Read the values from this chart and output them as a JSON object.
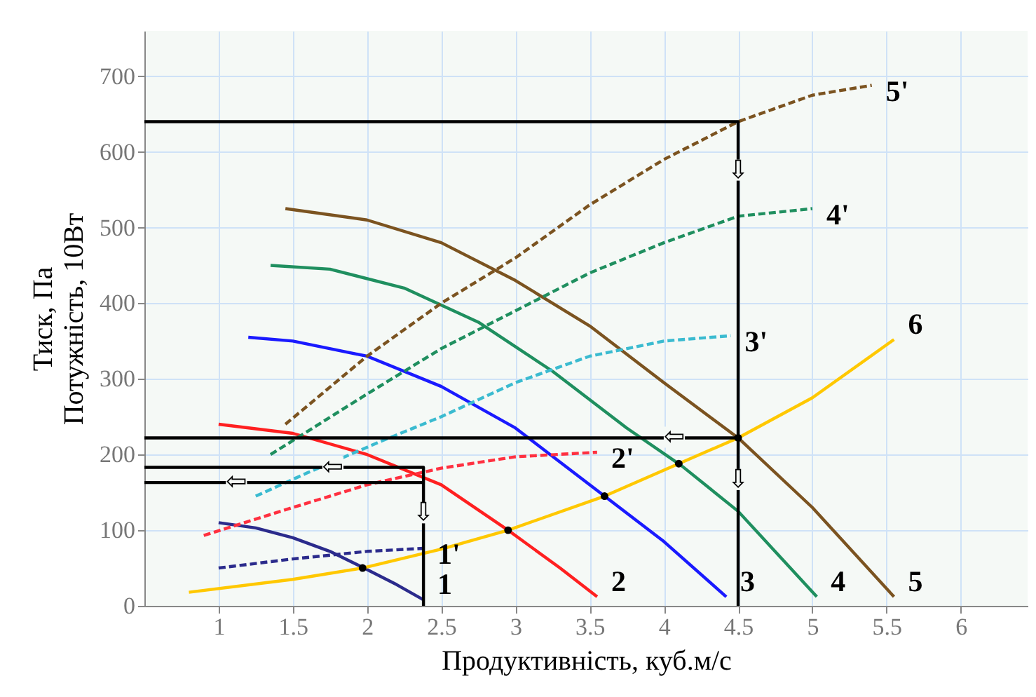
{
  "chart_data": {
    "type": "line",
    "xlabel": "Продуктивність, куб.м/с",
    "ylabel": "Тиск, Па\nПотужність, 10Вт",
    "xlim": [
      0.5,
      6.45
    ],
    "ylim": [
      0,
      760
    ],
    "xticks": [
      1,
      1.5,
      2,
      2.5,
      3,
      3.5,
      4,
      4.5,
      5,
      5.5,
      6
    ],
    "yticks": [
      0,
      100,
      200,
      300,
      400,
      500,
      600,
      700
    ],
    "grid": true,
    "series": [
      {
        "name": "1",
        "color": "#2b2b8c",
        "line_style": "solid",
        "x": [
          1,
          1.25,
          1.5,
          1.75,
          2,
          2.2,
          2.38
        ],
        "values": [
          110,
          103,
          90,
          72,
          48,
          28,
          8
        ]
      },
      {
        "name": "2",
        "color": "#ff2020",
        "line_style": "solid",
        "x": [
          1,
          1.5,
          2,
          2.5,
          2.95,
          3.3,
          3.55
        ],
        "values": [
          240,
          228,
          200,
          160,
          100,
          50,
          12
        ]
      },
      {
        "name": "3",
        "color": "#1a1aff",
        "line_style": "solid",
        "x": [
          1.2,
          1.5,
          2,
          2.5,
          3,
          3.6,
          4,
          4.42
        ],
        "values": [
          355,
          350,
          330,
          290,
          235,
          145,
          85,
          12
        ]
      },
      {
        "name": "4",
        "color": "#1f8f5f",
        "line_style": "solid",
        "x": [
          1.35,
          1.75,
          2.25,
          2.75,
          3.25,
          3.75,
          4.12,
          4.5,
          5.03
        ],
        "values": [
          450,
          445,
          420,
          375,
          310,
          235,
          185,
          125,
          12
        ]
      },
      {
        "name": "5",
        "color": "#7b5320",
        "line_style": "solid",
        "x": [
          1.45,
          2,
          2.5,
          3,
          3.5,
          4,
          4.5,
          5,
          5.55
        ],
        "values": [
          525,
          510,
          480,
          430,
          370,
          295,
          222,
          130,
          12
        ]
      },
      {
        "name": "1'",
        "color": "#2b2b8c",
        "line_style": "dashed",
        "x": [
          1,
          1.5,
          2,
          2.38
        ],
        "values": [
          50,
          62,
          72,
          76
        ]
      },
      {
        "name": "2'",
        "color": "#ff3040",
        "line_style": "dashed",
        "x": [
          0.9,
          1.5,
          2,
          2.5,
          3,
          3.55
        ],
        "values": [
          93,
          130,
          160,
          182,
          197,
          203
        ]
      },
      {
        "name": "3'",
        "color": "#3bbbd0",
        "line_style": "dashed",
        "x": [
          1.25,
          1.6,
          2.1,
          2.5,
          3,
          3.5,
          4,
          4.45
        ],
        "values": [
          145,
          176,
          218,
          250,
          295,
          330,
          350,
          357
        ]
      },
      {
        "name": "4'",
        "color": "#1f8f5f",
        "line_style": "dashed",
        "x": [
          1.35,
          2,
          2.5,
          3,
          3.5,
          4,
          4.5,
          5
        ],
        "values": [
          200,
          280,
          340,
          390,
          440,
          480,
          515,
          525
        ]
      },
      {
        "name": "5'",
        "color": "#7b5320",
        "line_style": "dashed",
        "x": [
          1.45,
          2,
          2.5,
          3,
          3.5,
          4,
          4.5,
          5,
          5.4
        ],
        "values": [
          240,
          330,
          400,
          460,
          530,
          590,
          640,
          675,
          688
        ]
      },
      {
        "name": "6",
        "color": "#ffc800",
        "line_style": "solid",
        "x": [
          0.8,
          1.5,
          1.97,
          2.5,
          2.95,
          3.6,
          4.1,
          4.5,
          5,
          5.55
        ],
        "values": [
          18,
          35,
          50,
          75,
          100,
          145,
          188,
          222,
          275,
          352
        ]
      },
      {
        "color": "#000000",
        "line_style": "solid",
        "x": [
          0.5,
          4.5,
          4.5
        ],
        "values": [
          640,
          640,
          0
        ]
      },
      {
        "color": "#000000",
        "line_style": "solid",
        "x": [
          0.5,
          4.5
        ],
        "values": [
          222,
          222
        ]
      },
      {
        "color": "#000000",
        "line_style": "solid",
        "x": [
          0.5,
          2.38,
          2.38
        ],
        "values": [
          183,
          183,
          0
        ]
      },
      {
        "color": "#000000",
        "line_style": "solid",
        "x": [
          0.5,
          2.38
        ],
        "values": [
          163,
          163
        ]
      },
      {
        "type": "scatter",
        "color": "#000000",
        "marker": "circle",
        "x": [
          1.97,
          2.95,
          3.6,
          4.1,
          4.5
        ],
        "values": [
          50,
          100,
          145,
          188,
          222
        ]
      }
    ],
    "annotations": [
      {
        "text": "⇩",
        "x": 4.5,
        "y": 575
      },
      {
        "text": "⇩",
        "x": 4.5,
        "y": 166
      },
      {
        "text": "⇦",
        "x": 4.07,
        "y": 222
      },
      {
        "text": "⇦",
        "x": 1.77,
        "y": 183
      },
      {
        "text": "⇦",
        "x": 1.12,
        "y": 163
      },
      {
        "text": "⇩",
        "x": 2.38,
        "y": 122
      }
    ]
  }
}
